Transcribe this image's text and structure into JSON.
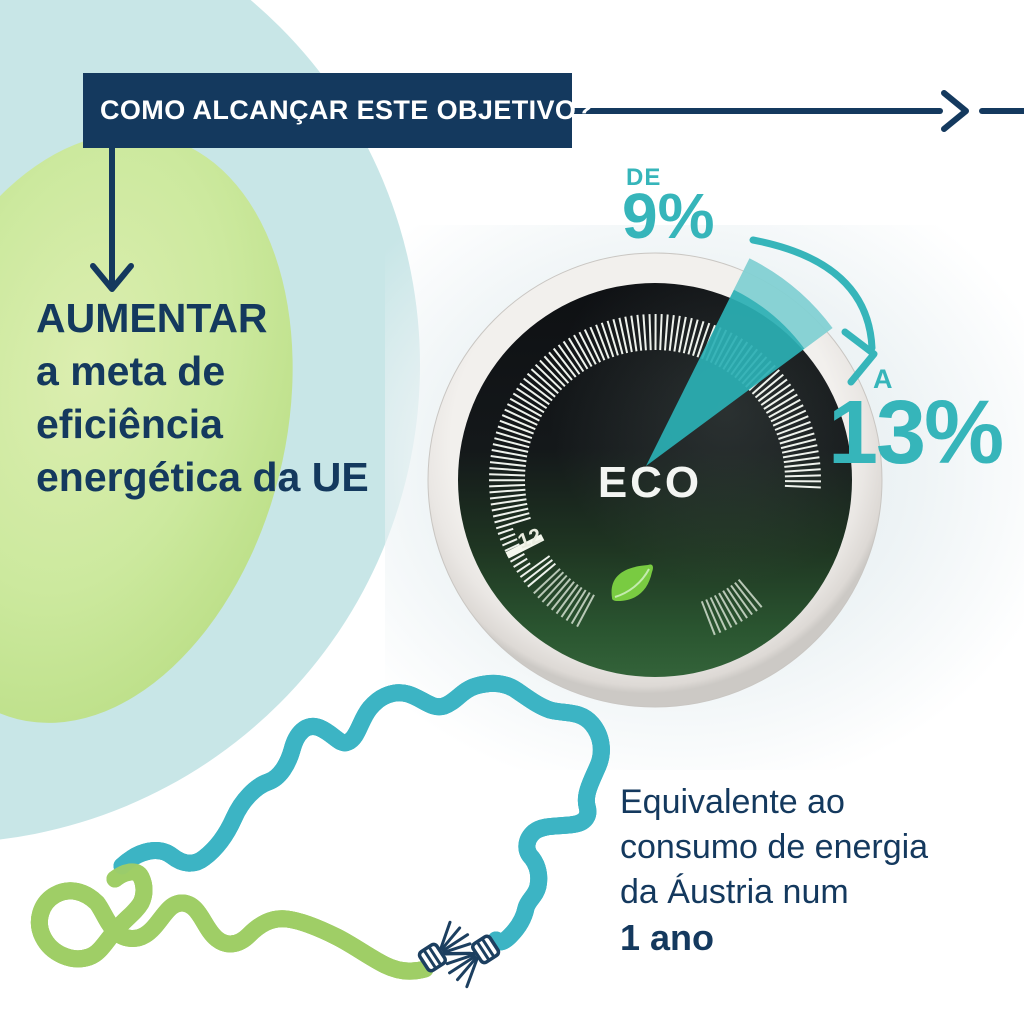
{
  "header": {
    "title": "COMO ALCANÇAR ESTE OBJETIVO?"
  },
  "increase_block": {
    "lines": [
      "AUMENTAR",
      "a meta de",
      "eficiência",
      "energética da UE"
    ]
  },
  "stat": {
    "from_label": "DE",
    "from_value": "9%",
    "to_label": "A",
    "to_value": "13%"
  },
  "thermostat": {
    "mode_label": "ECO",
    "temperature_label": "12"
  },
  "equivalence": {
    "lines": [
      "Equivalente ao",
      "consumo de energia",
      "da Áustria num"
    ],
    "duration": "1 ano"
  },
  "icons": {
    "right_arrow": "right-arrow-icon",
    "down_arrow": "down-arrow-icon",
    "curved_arrow": "curved-arrow-icon",
    "leaf": "leaf-icon",
    "austria_outline": "austria-cable-map"
  },
  "colors": {
    "navy": "#14395e",
    "teal_accent": "#36b5ba",
    "wedge_teal": "#2bafb4",
    "map_teal": "#3cb4c4",
    "map_green": "#9fce66",
    "leaf_green": "#79cb41",
    "pale_circle": "#c8e6e7",
    "pale_green": "#c6e59b",
    "tick_white": "#eef2ec"
  }
}
